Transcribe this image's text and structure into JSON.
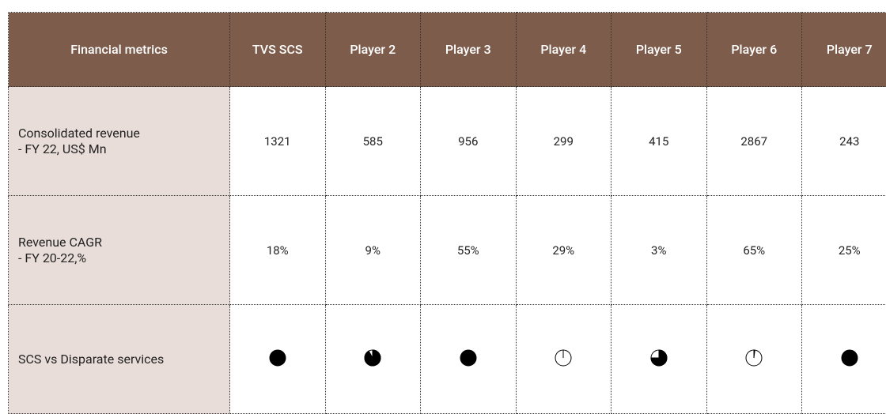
{
  "table": {
    "header": [
      "Financial metrics",
      "TVS SCS",
      "Player 2",
      "Player 3",
      "Player 4",
      "Player 5",
      "Player 6",
      "Player 7"
    ],
    "rows": [
      {
        "label": [
          "Consolidated revenue",
          "- FY 22, US$ Mn"
        ],
        "cells": [
          "1321",
          "585",
          "956",
          "299",
          "415",
          "2867",
          "243"
        ]
      },
      {
        "label": [
          "Revenue CAGR",
          "- FY 20-22,%"
        ],
        "cells": [
          "18%",
          "9%",
          "55%",
          "29%",
          "3%",
          "65%",
          "25%"
        ]
      },
      {
        "label": [
          "SCS vs Disparate services"
        ],
        "fill": [
          1,
          0.92,
          1,
          0,
          0.75,
          0.02,
          1
        ]
      }
    ]
  }
}
